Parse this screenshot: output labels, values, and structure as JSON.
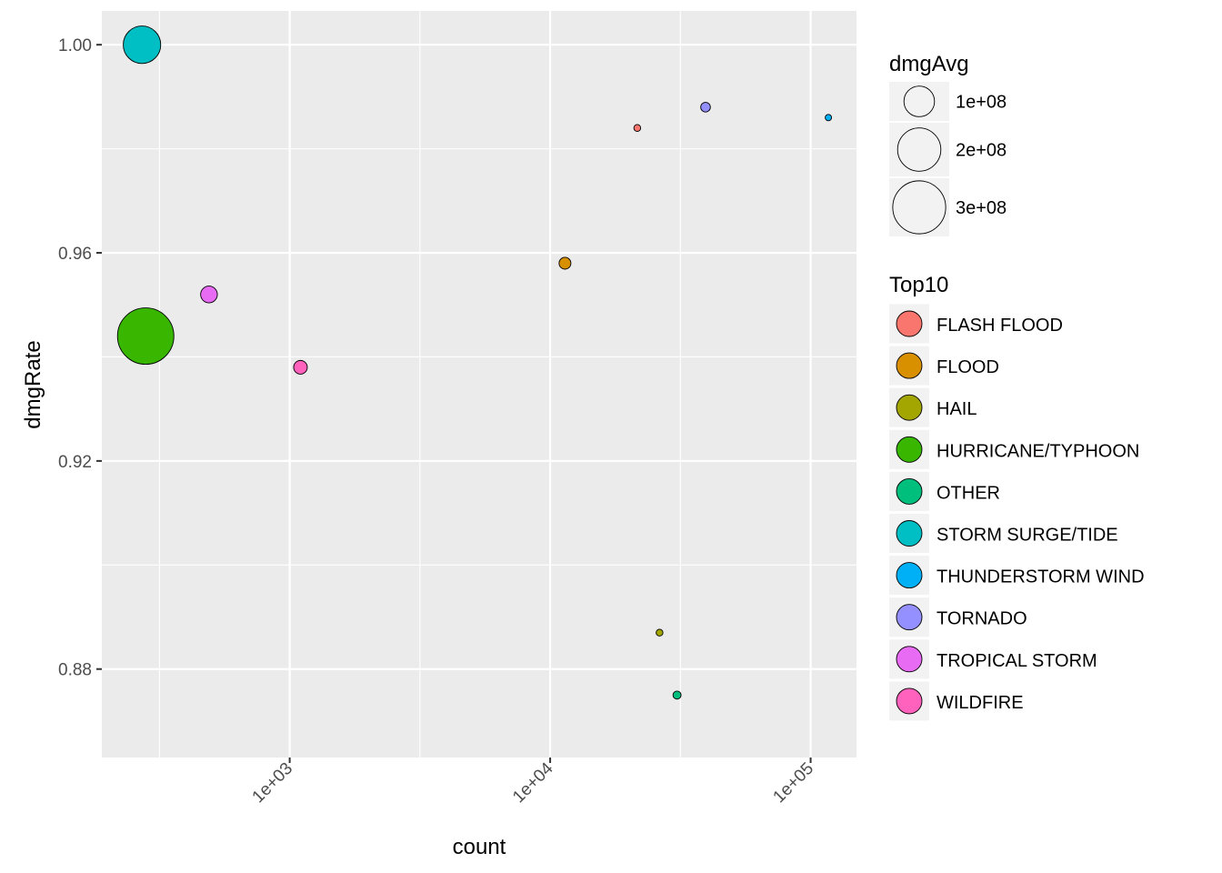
{
  "chart_data": {
    "type": "scatter",
    "xlabel": "count",
    "ylabel": "dmgRate",
    "x_scale": "log10",
    "xlim": [
      190,
      150000
    ],
    "ylim": [
      0.863,
      1.0065
    ],
    "x_ticks": [
      1000,
      10000,
      100000
    ],
    "x_tick_labels": [
      "1e+03",
      "1e+04",
      "1e+05"
    ],
    "y_ticks": [
      0.88,
      0.92,
      0.96,
      1.0
    ],
    "y_tick_labels": [
      "0.88",
      "0.92",
      "0.96",
      "1.00"
    ],
    "grid": true,
    "size_legend": {
      "title": "dmgAvg",
      "entries": [
        {
          "label": "1e+08",
          "value": 100000000
        },
        {
          "label": "2e+08",
          "value": 200000000
        },
        {
          "label": "3e+08",
          "value": 300000000
        }
      ]
    },
    "fill_legend": {
      "title": "Top10",
      "placement": "right",
      "entries": [
        {
          "label": "FLASH FLOOD",
          "color": "#F8766D"
        },
        {
          "label": "FLOOD",
          "color": "#D89000"
        },
        {
          "label": "HAIL",
          "color": "#A3A500"
        },
        {
          "label": "HURRICANE/TYPHOON",
          "color": "#39B600"
        },
        {
          "label": "OTHER",
          "color": "#00BF7D"
        },
        {
          "label": "STORM SURGE/TIDE",
          "color": "#00BFC4"
        },
        {
          "label": "THUNDERSTORM WIND",
          "color": "#00B0F6"
        },
        {
          "label": "TORNADO",
          "color": "#9590FF"
        },
        {
          "label": "TROPICAL STORM",
          "color": "#E76BF3"
        },
        {
          "label": "WILDFIRE",
          "color": "#FF62BC"
        }
      ]
    },
    "series": [
      {
        "category": "FLASH FLOOD",
        "x": 21600,
        "y": 0.984,
        "dmgAvg": 5000000
      },
      {
        "category": "FLOOD",
        "x": 11400,
        "y": 0.958,
        "dmgAvg": 15000000
      },
      {
        "category": "HAIL",
        "x": 26300,
        "y": 0.887,
        "dmgAvg": 5000000
      },
      {
        "category": "HURRICANE/TYPHOON",
        "x": 280,
        "y": 0.944,
        "dmgAvg": 340000000
      },
      {
        "category": "OTHER",
        "x": 30700,
        "y": 0.875,
        "dmgAvg": 7000000
      },
      {
        "category": "STORM SURGE/TIDE",
        "x": 271,
        "y": 1.0,
        "dmgAvg": 150000000
      },
      {
        "category": "THUNDERSTORM WIND",
        "x": 117000,
        "y": 0.986,
        "dmgAvg": 1000000
      },
      {
        "category": "TORNADO",
        "x": 39500,
        "y": 0.988,
        "dmgAvg": 10000000
      },
      {
        "category": "TROPICAL STORM",
        "x": 490,
        "y": 0.952,
        "dmgAvg": 30000000
      },
      {
        "category": "WILDFIRE",
        "x": 1100,
        "y": 0.938,
        "dmgAvg": 20000000
      }
    ]
  }
}
